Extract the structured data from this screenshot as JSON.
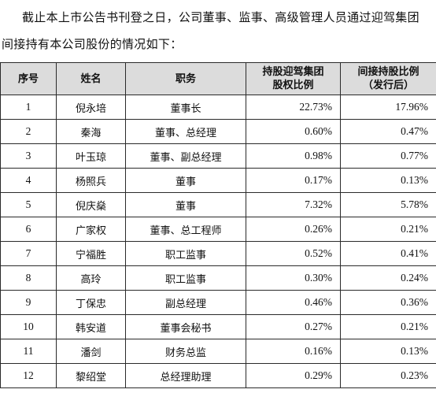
{
  "intro": {
    "line1": "截止本上市公告书刊登之日，公司董事、监事、高级管理人员通过迎驾集团",
    "line2": "间接持有本公司股份的情况如下："
  },
  "table": {
    "headers": {
      "no": "序号",
      "name": "姓名",
      "position": "职务",
      "group_ratio_line1": "持股迎驾集团",
      "group_ratio_line2": "股权比例",
      "indirect_ratio_line1": "间接持股比例",
      "indirect_ratio_line2": "（发行后）"
    },
    "rows": [
      {
        "no": "1",
        "name": "倪永培",
        "position": "董事长",
        "group_ratio": "22.73%",
        "indirect_ratio": "17.96%"
      },
      {
        "no": "2",
        "name": "秦海",
        "position": "董事、总经理",
        "group_ratio": "0.60%",
        "indirect_ratio": "0.47%"
      },
      {
        "no": "3",
        "name": "叶玉琼",
        "position": "董事、副总经理",
        "group_ratio": "0.98%",
        "indirect_ratio": "0.77%"
      },
      {
        "no": "4",
        "name": "杨照兵",
        "position": "董事",
        "group_ratio": "0.17%",
        "indirect_ratio": "0.13%"
      },
      {
        "no": "5",
        "name": "倪庆燊",
        "position": "董事",
        "group_ratio": "7.32%",
        "indirect_ratio": "5.78%"
      },
      {
        "no": "6",
        "name": "广家权",
        "position": "董事、总工程师",
        "group_ratio": "0.26%",
        "indirect_ratio": "0.21%"
      },
      {
        "no": "7",
        "name": "宁福胜",
        "position": "职工监事",
        "group_ratio": "0.52%",
        "indirect_ratio": "0.41%"
      },
      {
        "no": "8",
        "name": "高玲",
        "position": "职工监事",
        "group_ratio": "0.30%",
        "indirect_ratio": "0.24%"
      },
      {
        "no": "9",
        "name": "丁保忠",
        "position": "副总经理",
        "group_ratio": "0.46%",
        "indirect_ratio": "0.36%"
      },
      {
        "no": "10",
        "name": "韩安道",
        "position": "董事会秘书",
        "group_ratio": "0.27%",
        "indirect_ratio": "0.21%"
      },
      {
        "no": "11",
        "name": "潘剑",
        "position": "财务总监",
        "group_ratio": "0.16%",
        "indirect_ratio": "0.13%"
      },
      {
        "no": "12",
        "name": "黎绍堂",
        "position": "总经理助理",
        "group_ratio": "0.29%",
        "indirect_ratio": "0.23%"
      }
    ]
  }
}
